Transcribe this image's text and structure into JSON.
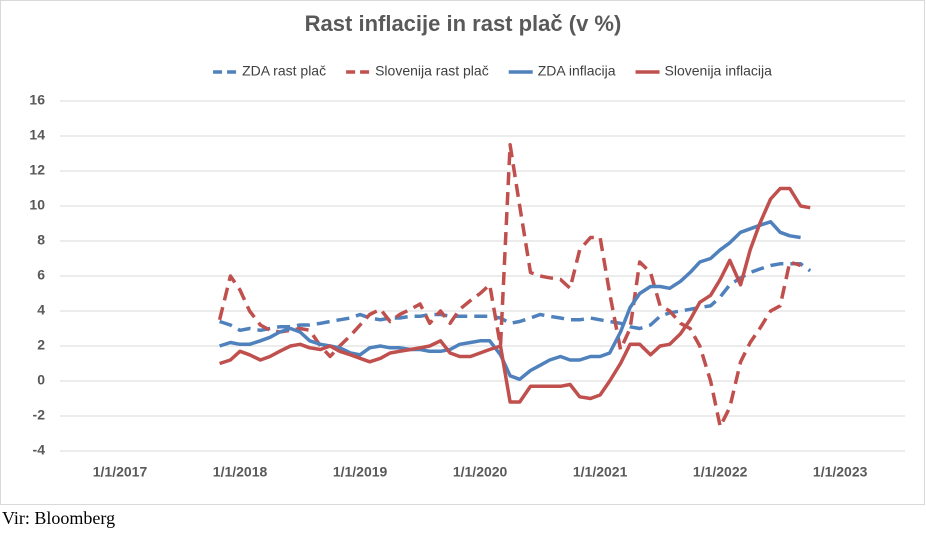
{
  "chart_data": {
    "type": "line",
    "title": "Rast inflacije in rast plač (v %)",
    "source": "Vir: Bloomberg",
    "x": [
      2017.83,
      2017.92,
      2018.0,
      2018.08,
      2018.17,
      2018.25,
      2018.33,
      2018.42,
      2018.5,
      2018.58,
      2018.67,
      2018.75,
      2018.83,
      2018.92,
      2019.0,
      2019.08,
      2019.17,
      2019.25,
      2019.33,
      2019.42,
      2019.5,
      2019.58,
      2019.67,
      2019.75,
      2019.83,
      2019.92,
      2020.0,
      2020.08,
      2020.17,
      2020.25,
      2020.33,
      2020.42,
      2020.5,
      2020.58,
      2020.67,
      2020.75,
      2020.83,
      2020.92,
      2021.0,
      2021.08,
      2021.17,
      2021.25,
      2021.33,
      2021.42,
      2021.5,
      2021.58,
      2021.67,
      2021.75,
      2021.83,
      2021.92,
      2022.0,
      2022.08,
      2022.17,
      2022.25,
      2022.33,
      2022.42,
      2022.5,
      2022.58,
      2022.67,
      2022.75
    ],
    "series": [
      {
        "name": "ZDA rast plač",
        "color": "#4f81bd",
        "dash": true,
        "values": [
          3.4,
          3.2,
          2.9,
          3.0,
          2.9,
          3.0,
          3.1,
          3.1,
          3.2,
          3.2,
          3.3,
          3.4,
          3.5,
          3.6,
          3.8,
          3.6,
          3.5,
          3.6,
          3.6,
          3.7,
          3.7,
          3.8,
          3.8,
          3.7,
          3.7,
          3.7,
          3.7,
          3.7,
          3.6,
          3.3,
          3.4,
          3.6,
          3.8,
          3.7,
          3.6,
          3.5,
          3.5,
          3.6,
          3.5,
          3.4,
          3.3,
          3.1,
          3.0,
          3.2,
          3.7,
          3.9,
          4.0,
          4.1,
          4.2,
          4.3,
          4.8,
          5.5,
          5.9,
          6.2,
          6.4,
          6.6,
          6.7,
          6.7,
          6.7,
          6.3
        ]
      },
      {
        "name": "Slovenija rast plač",
        "color": "#c0504d",
        "dash": true,
        "values": [
          3.5,
          6.0,
          5.2,
          4.0,
          3.2,
          2.9,
          2.8,
          2.9,
          3.0,
          2.9,
          2.0,
          1.4,
          2.0,
          2.6,
          3.2,
          3.8,
          4.1,
          3.4,
          3.8,
          4.1,
          4.4,
          3.3,
          4.0,
          3.3,
          4.1,
          4.6,
          5.0,
          5.5,
          2.0,
          13.5,
          10.0,
          6.2,
          6.0,
          5.9,
          5.8,
          5.3,
          7.5,
          8.2,
          8.2,
          5.0,
          1.8,
          3.0,
          6.8,
          6.2,
          4.3,
          4.0,
          3.3,
          3.0,
          2.0,
          0,
          -2.6,
          -1.5,
          1.1,
          2.2,
          3.0,
          4.0,
          4.3,
          6.8,
          6.6,
          null
        ]
      },
      {
        "name": "ZDA inflacija",
        "color": "#4f81bd",
        "dash": false,
        "values": [
          2.0,
          2.2,
          2.1,
          2.1,
          2.3,
          2.5,
          2.8,
          3.0,
          2.8,
          2.3,
          2.1,
          2.0,
          1.9,
          1.6,
          1.5,
          1.9,
          2.0,
          1.9,
          1.9,
          1.8,
          1.8,
          1.7,
          1.7,
          1.8,
          2.1,
          2.2,
          2.3,
          2.3,
          1.5,
          0.3,
          0.1,
          0.6,
          0.9,
          1.2,
          1.4,
          1.2,
          1.2,
          1.4,
          1.4,
          1.6,
          2.8,
          4.2,
          5.0,
          5.4,
          5.4,
          5.3,
          5.7,
          6.2,
          6.8,
          7.0,
          7.5,
          7.9,
          8.5,
          8.7,
          8.9,
          9.1,
          8.5,
          8.3,
          8.2,
          null
        ]
      },
      {
        "name": "Slovenija inflacija",
        "color": "#c0504d",
        "dash": false,
        "values": [
          1.0,
          1.2,
          1.7,
          1.5,
          1.2,
          1.4,
          1.7,
          2.0,
          2.1,
          1.9,
          1.8,
          2.0,
          1.7,
          1.5,
          1.3,
          1.1,
          1.3,
          1.6,
          1.7,
          1.8,
          1.9,
          2.0,
          2.3,
          1.6,
          1.4,
          1.4,
          1.6,
          1.8,
          2.0,
          -1.2,
          -1.2,
          -0.3,
          -0.3,
          -0.3,
          -0.3,
          -0.2,
          -0.9,
          -1.0,
          -0.8,
          0,
          1.0,
          2.1,
          2.1,
          1.5,
          2.0,
          2.1,
          2.7,
          3.5,
          4.5,
          4.9,
          5.8,
          6.9,
          5.5,
          7.5,
          9.0,
          10.4,
          11.0,
          11.0,
          10.0,
          9.9
        ]
      }
    ],
    "xlim": [
      2016.5,
      2023.54
    ],
    "xticks": [
      {
        "value": 2017,
        "label": "1/1/2017"
      },
      {
        "value": 2018,
        "label": "1/1/2018"
      },
      {
        "value": 2019,
        "label": "1/1/2019"
      },
      {
        "value": 2020,
        "label": "1/1/2020"
      },
      {
        "value": 2021,
        "label": "1/1/2021"
      },
      {
        "value": 2022,
        "label": "1/1/2022"
      },
      {
        "value": 2023,
        "label": "1/1/2023"
      }
    ],
    "ylim": [
      -4,
      16
    ],
    "yticks": [
      -4,
      -2,
      0,
      2,
      4,
      6,
      8,
      10,
      12,
      14,
      16
    ],
    "grid": true,
    "legend": "top"
  }
}
